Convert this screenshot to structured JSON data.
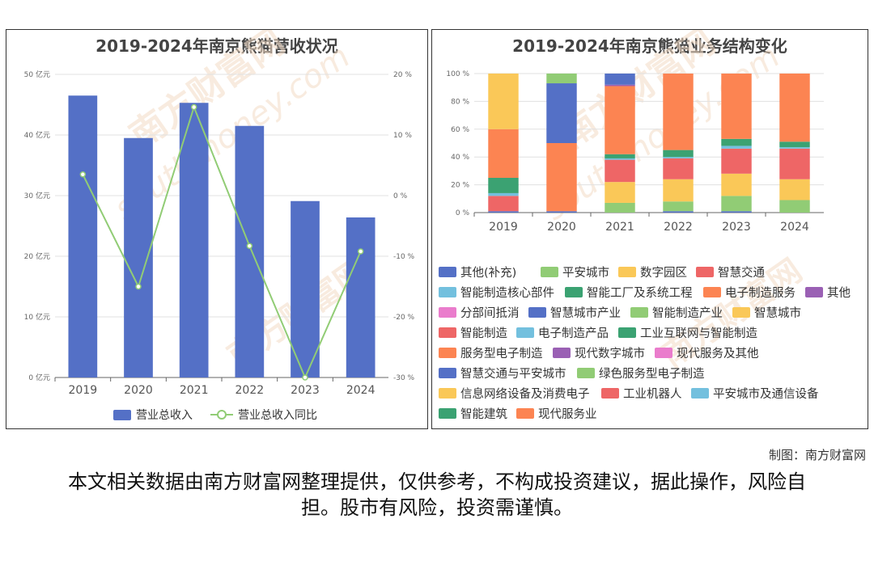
{
  "left_chart": {
    "title": "2019-2024年南京熊猫营收状况",
    "chart_data": {
      "type": "bar",
      "categories": [
        "2019",
        "2020",
        "2021",
        "2022",
        "2023",
        "2024"
      ],
      "series": [
        {
          "name": "营业总收入",
          "type": "bar",
          "axis": "left",
          "values": [
            46.5,
            39.5,
            45.3,
            41.5,
            29.1,
            26.4
          ]
        },
        {
          "name": "营业总收入同比",
          "type": "line",
          "axis": "right",
          "values": [
            3.5,
            -15.0,
            14.6,
            -8.3,
            -30.0,
            -9.2
          ]
        }
      ],
      "left_axis": {
        "ylim": [
          0,
          50
        ],
        "ticks": [
          "0 亿元",
          "10 亿元",
          "20 亿元",
          "30 亿元",
          "40 亿元",
          "50 亿元"
        ]
      },
      "right_axis": {
        "ylim": [
          -30,
          20
        ],
        "ticks": [
          "-30 %",
          "-20 %",
          "-10 %",
          "0 %",
          "10 %",
          "20 %"
        ]
      },
      "legend_position": "bottom",
      "colors": {
        "bar": "#5470c6",
        "line": "#91cc75"
      }
    }
  },
  "right_chart": {
    "title": "2019-2024年南京熊猫业务结构变化",
    "chart_data": {
      "type": "bar",
      "stacked": true,
      "categories": [
        "2019",
        "2020",
        "2021",
        "2022",
        "2023",
        "2024"
      ],
      "ylim": [
        0,
        100
      ],
      "ticks": [
        "0 %",
        "20 %",
        "40 %",
        "60 %",
        "80 %",
        "100 %"
      ],
      "legend_position": "bottom",
      "series": [
        {
          "name": "其他(补充)",
          "color": "#5470c6",
          "values": [
            1,
            1,
            0,
            1,
            1,
            0
          ]
        },
        {
          "name": "平安城市",
          "color": "#91cc75",
          "values": [
            0,
            0,
            7,
            7,
            11,
            9
          ]
        },
        {
          "name": "数字园区",
          "color": "#fac858",
          "values": [
            0,
            0,
            15,
            16,
            16,
            15
          ]
        },
        {
          "name": "智慧交通",
          "color": "#ee6666",
          "values": [
            11,
            0,
            16,
            15,
            18,
            22
          ]
        },
        {
          "name": "智能制造核心部件",
          "color": "#73c0de",
          "values": [
            2,
            0,
            1,
            1,
            2,
            1
          ]
        },
        {
          "name": "智能工厂及系统工程",
          "color": "#3ba272",
          "values": [
            11,
            0,
            3,
            5,
            5,
            4
          ]
        },
        {
          "name": "电子制造服务",
          "color": "#fc8452",
          "values": [
            35,
            49,
            49,
            55,
            47,
            49
          ]
        },
        {
          "name": "其他",
          "color": "#9a60b4",
          "values": [
            0,
            0,
            1,
            0,
            0,
            0
          ]
        },
        {
          "name": "分部间抵消",
          "color": "#ea7ccc",
          "values": [
            0,
            0,
            0,
            0,
            0,
            0
          ]
        },
        {
          "name": "智慧城市产业",
          "color": "#5470c6",
          "values": [
            0,
            43,
            8,
            0,
            0,
            0
          ]
        },
        {
          "name": "智能制造产业",
          "color": "#91cc75",
          "values": [
            0,
            7,
            0,
            0,
            0,
            0
          ]
        },
        {
          "name": "智慧城市",
          "color": "#fac858",
          "values": [
            40,
            0,
            0,
            0,
            0,
            0
          ]
        },
        {
          "name": "智能制造",
          "color": "#ee6666",
          "values": [
            0,
            0,
            0,
            0,
            0,
            0
          ]
        },
        {
          "name": "电子制造产品",
          "color": "#73c0de",
          "values": [
            0,
            0,
            0,
            0,
            0,
            0
          ]
        },
        {
          "name": "工业互联网与智能制造",
          "color": "#3ba272",
          "values": [
            0,
            0,
            0,
            0,
            0,
            0
          ]
        },
        {
          "name": "服务型电子制造",
          "color": "#fc8452",
          "values": [
            0,
            0,
            0,
            0,
            0,
            0
          ]
        },
        {
          "name": "现代数字城市",
          "color": "#9a60b4",
          "values": [
            0,
            0,
            0,
            0,
            0,
            0
          ]
        },
        {
          "name": "现代服务及其他",
          "color": "#ea7ccc",
          "values": [
            0,
            0,
            0,
            0,
            0,
            0
          ]
        },
        {
          "name": "智慧交通与平安城市",
          "color": "#5470c6",
          "values": [
            0,
            0,
            0,
            0,
            0,
            0
          ]
        },
        {
          "name": "绿色服务型电子制造",
          "color": "#91cc75",
          "values": [
            0,
            0,
            0,
            0,
            0,
            0
          ]
        },
        {
          "name": "信息网络设备及消费电子",
          "color": "#fac858",
          "values": [
            0,
            0,
            0,
            0,
            0,
            0
          ]
        },
        {
          "name": "工业机器人",
          "color": "#ee6666",
          "values": [
            0,
            0,
            0,
            0,
            0,
            0
          ]
        },
        {
          "name": "平安城市及通信设备",
          "color": "#73c0de",
          "values": [
            0,
            0,
            0,
            0,
            0,
            0
          ]
        },
        {
          "name": "智能建筑",
          "color": "#3ba272",
          "values": [
            0,
            0,
            0,
            0,
            0,
            0
          ]
        },
        {
          "name": "现代服务业",
          "color": "#fc8452",
          "values": [
            0,
            0,
            0,
            0,
            0,
            0
          ]
        }
      ]
    }
  },
  "credit": "制图：南方财富网",
  "disclaimer": "本文相关数据由南方财富网整理提供，仅供参考，不构成投资建议，据此操作，风险自担。股市有风险，投资需谨慎。",
  "watermark": {
    "text": "南方财富网",
    "latin": "southmoney.com",
    "color": "#f3dcc6"
  }
}
